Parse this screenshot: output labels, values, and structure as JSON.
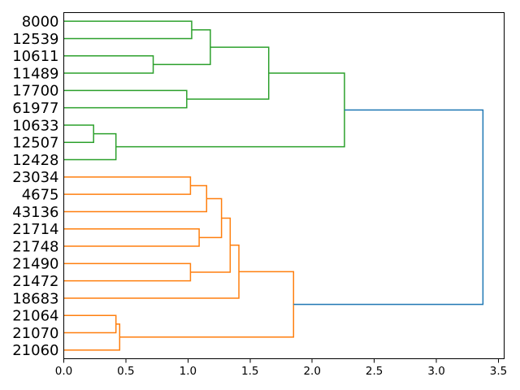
{
  "figure": {
    "background": "#ffffff"
  },
  "chart_data": {
    "type": "dendrogram",
    "orientation": "root-right-labels-left",
    "leaves": [
      "8000",
      "12539",
      "10611",
      "11489",
      "17700",
      "61977",
      "10633",
      "12507",
      "12428",
      "23034",
      "4675",
      "43136",
      "21714",
      "21748",
      "21490",
      "21472",
      "18683",
      "21064",
      "21070",
      "21060"
    ],
    "links": [
      {
        "id": "g1",
        "a": "leaf:0",
        "b": "leaf:1",
        "height": 1.03,
        "color": "green"
      },
      {
        "id": "g2",
        "a": "leaf:2",
        "b": "leaf:3",
        "height": 0.72,
        "color": "green"
      },
      {
        "id": "g3",
        "a": "g1",
        "b": "g2",
        "height": 1.18,
        "color": "green"
      },
      {
        "id": "g4",
        "a": "leaf:4",
        "b": "leaf:5",
        "height": 0.99,
        "color": "green"
      },
      {
        "id": "g5",
        "a": "g3",
        "b": "g4",
        "height": 1.65,
        "color": "green"
      },
      {
        "id": "g6",
        "a": "leaf:6",
        "b": "leaf:7",
        "height": 0.24,
        "color": "green"
      },
      {
        "id": "g7",
        "a": "g6",
        "b": "leaf:8",
        "height": 0.42,
        "color": "green"
      },
      {
        "id": "g8",
        "a": "g5",
        "b": "g7",
        "height": 2.26,
        "color": "green"
      },
      {
        "id": "o1",
        "a": "leaf:9",
        "b": "leaf:10",
        "height": 1.02,
        "color": "orange"
      },
      {
        "id": "o2",
        "a": "o1",
        "b": "leaf:11",
        "height": 1.15,
        "color": "orange"
      },
      {
        "id": "o3",
        "a": "leaf:12",
        "b": "leaf:13",
        "height": 1.09,
        "color": "orange"
      },
      {
        "id": "o4",
        "a": "o2",
        "b": "o3",
        "height": 1.27,
        "color": "orange"
      },
      {
        "id": "o5",
        "a": "leaf:14",
        "b": "leaf:15",
        "height": 1.02,
        "color": "orange"
      },
      {
        "id": "o6",
        "a": "o4",
        "b": "o5",
        "height": 1.34,
        "color": "orange"
      },
      {
        "id": "o7",
        "a": "o6",
        "b": "leaf:16",
        "height": 1.41,
        "color": "orange"
      },
      {
        "id": "o8",
        "a": "leaf:17",
        "b": "leaf:18",
        "height": 0.42,
        "color": "orange"
      },
      {
        "id": "o9",
        "a": "o8",
        "b": "leaf:19",
        "height": 0.45,
        "color": "orange"
      },
      {
        "id": "o10",
        "a": "o7",
        "b": "o9",
        "height": 1.85,
        "color": "orange"
      },
      {
        "id": "root",
        "a": "g8",
        "b": "o10",
        "height": 3.375,
        "color": "blue"
      }
    ],
    "colors": {
      "green": "#2ca02c",
      "orange": "#ff7f0e",
      "blue": "#1f77b4",
      "axis": "#000000"
    },
    "x_axis": {
      "tick_labels": [
        "0.0",
        "0.5",
        "1.0",
        "1.5",
        "2.0",
        "2.5",
        "3.0",
        "3.5"
      ],
      "tick_values": [
        0.0,
        0.5,
        1.0,
        1.5,
        2.0,
        2.5,
        3.0,
        3.5
      ],
      "xlim": [
        0.0,
        3.546
      ]
    },
    "grid": false,
    "legend": false
  }
}
